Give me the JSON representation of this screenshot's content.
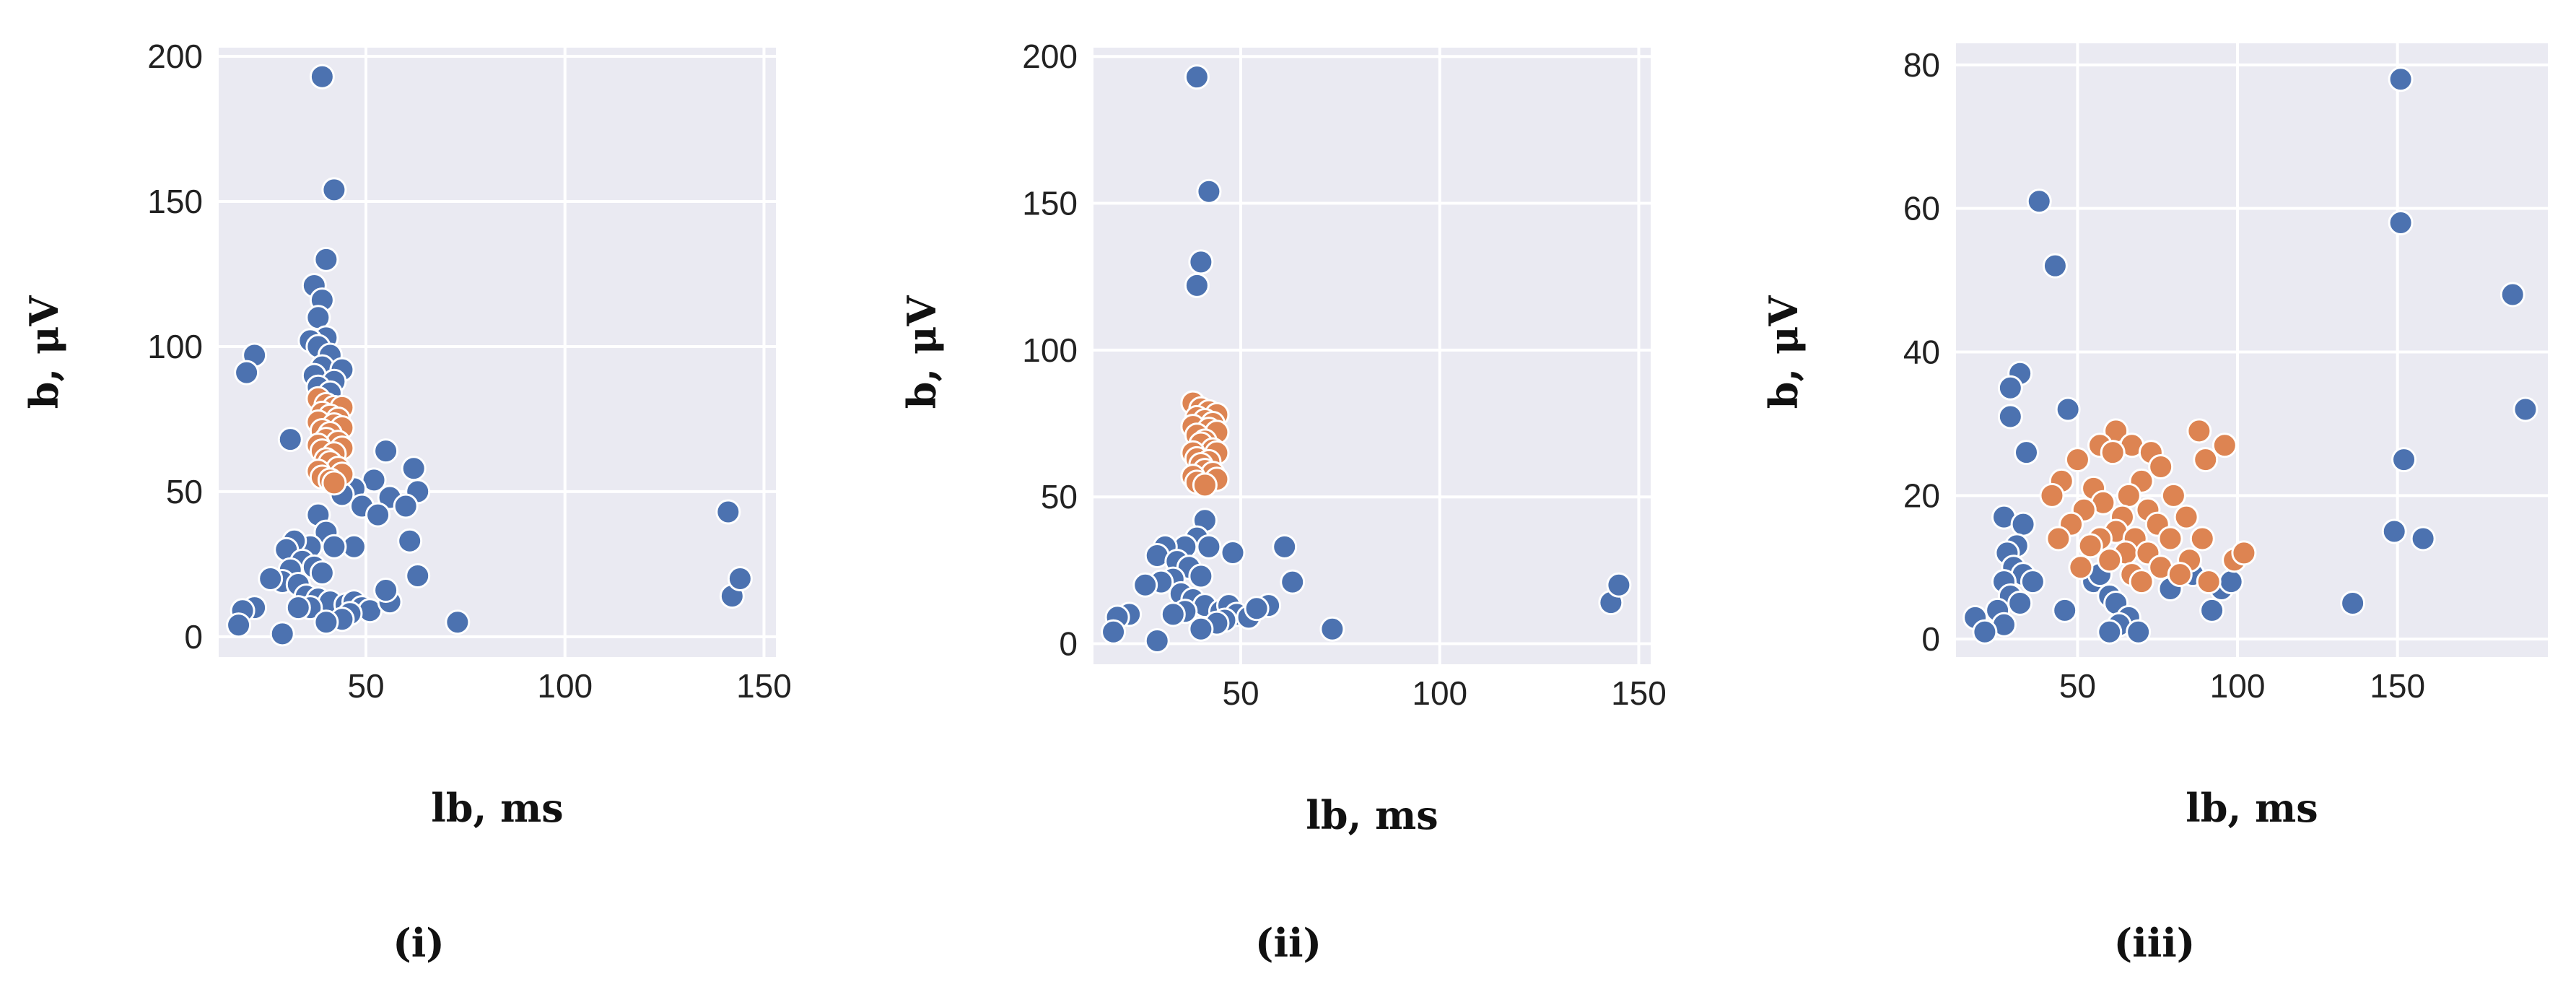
{
  "colors": {
    "background": "#eaeaf2",
    "grid": "#ffffff",
    "cluster_other": "#4c72b0",
    "cluster_highlight": "#dd8452",
    "marker_edge": "#ffffff"
  },
  "chart_data": [
    {
      "type": "scatter",
      "panel_label": "(i)",
      "xlabel": "lb, ms",
      "ylabel": "b, μV",
      "xlim": [
        13,
        153
      ],
      "ylim": [
        -7,
        203
      ],
      "xticks": [
        50,
        100,
        150
      ],
      "yticks": [
        0,
        50,
        100,
        150,
        200
      ],
      "grid": true,
      "series": [
        {
          "color": "#4c72b0",
          "points": [
            [
              39,
              193
            ],
            [
              42,
              154
            ],
            [
              40,
              130
            ],
            [
              37,
              121
            ],
            [
              39,
              116
            ],
            [
              38,
              110
            ],
            [
              40,
              103
            ],
            [
              36,
              102
            ],
            [
              38,
              100
            ],
            [
              41,
              97
            ],
            [
              39,
              93
            ],
            [
              44,
              92
            ],
            [
              37,
              90
            ],
            [
              42,
              88
            ],
            [
              38,
              86
            ],
            [
              41,
              84
            ],
            [
              22,
              97
            ],
            [
              20,
              91
            ],
            [
              31,
              68
            ],
            [
              55,
              64
            ],
            [
              62,
              58
            ],
            [
              52,
              54
            ],
            [
              63,
              50
            ],
            [
              47,
              51
            ],
            [
              56,
              48
            ],
            [
              60,
              45
            ],
            [
              44,
              49
            ],
            [
              49,
              45
            ],
            [
              53,
              42
            ],
            [
              61,
              33
            ],
            [
              47,
              31
            ],
            [
              63,
              21
            ],
            [
              38,
              42
            ],
            [
              40,
              36
            ],
            [
              36,
              31
            ],
            [
              42,
              31
            ],
            [
              32,
              33
            ],
            [
              30,
              30
            ],
            [
              34,
              26
            ],
            [
              37,
              24
            ],
            [
              39,
              22
            ],
            [
              31,
              23
            ],
            [
              29,
              19
            ],
            [
              26,
              20
            ],
            [
              33,
              18
            ],
            [
              35,
              14
            ],
            [
              38,
              13
            ],
            [
              41,
              12
            ],
            [
              36,
              10
            ],
            [
              33,
              10
            ],
            [
              45,
              11
            ],
            [
              47,
              12
            ],
            [
              49,
              10
            ],
            [
              51,
              9
            ],
            [
              56,
              12
            ],
            [
              46,
              8
            ],
            [
              44,
              6
            ],
            [
              40,
              5
            ],
            [
              29,
              1
            ],
            [
              22,
              10
            ],
            [
              19,
              9
            ],
            [
              18,
              4
            ],
            [
              55,
              16
            ],
            [
              73,
              5
            ],
            [
              141,
              43
            ],
            [
              142,
              14
            ],
            [
              144,
              20
            ]
          ]
        },
        {
          "color": "#dd8452",
          "points": [
            [
              38,
              82
            ],
            [
              40,
              80
            ],
            [
              42,
              79
            ],
            [
              44,
              79
            ],
            [
              39,
              77
            ],
            [
              41,
              76
            ],
            [
              43,
              75
            ],
            [
              38,
              74
            ],
            [
              42,
              73
            ],
            [
              44,
              72
            ],
            [
              39,
              71
            ],
            [
              41,
              70
            ],
            [
              40,
              68
            ],
            [
              43,
              67
            ],
            [
              38,
              66
            ],
            [
              44,
              65
            ],
            [
              39,
              64
            ],
            [
              42,
              63
            ],
            [
              40,
              61
            ],
            [
              41,
              60
            ],
            [
              43,
              58
            ],
            [
              38,
              57
            ],
            [
              44,
              56
            ],
            [
              39,
              55
            ],
            [
              41,
              54
            ],
            [
              42,
              53
            ]
          ]
        }
      ]
    },
    {
      "type": "scatter",
      "panel_label": "(ii)",
      "xlabel": "lb, ms",
      "ylabel": "b, μV",
      "xlim": [
        13,
        153
      ],
      "ylim": [
        -7,
        203
      ],
      "xticks": [
        50,
        100,
        150
      ],
      "yticks": [
        0,
        50,
        100,
        150,
        200
      ],
      "grid": true,
      "series": [
        {
          "color": "#4c72b0",
          "points": [
            [
              39,
              193
            ],
            [
              42,
              154
            ],
            [
              40,
              130
            ],
            [
              39,
              122
            ],
            [
              41,
              42
            ],
            [
              39,
              36
            ],
            [
              36,
              33
            ],
            [
              42,
              33
            ],
            [
              31,
              33
            ],
            [
              29,
              30
            ],
            [
              34,
              28
            ],
            [
              37,
              26
            ],
            [
              40,
              23
            ],
            [
              33,
              22
            ],
            [
              30,
              21
            ],
            [
              26,
              20
            ],
            [
              35,
              17
            ],
            [
              38,
              15
            ],
            [
              41,
              13
            ],
            [
              36,
              11
            ],
            [
              33,
              10
            ],
            [
              45,
              11
            ],
            [
              47,
              13
            ],
            [
              49,
              10
            ],
            [
              52,
              9
            ],
            [
              57,
              13
            ],
            [
              46,
              8
            ],
            [
              44,
              7
            ],
            [
              40,
              5
            ],
            [
              29,
              1
            ],
            [
              22,
              10
            ],
            [
              19,
              9
            ],
            [
              18,
              4
            ],
            [
              48,
              31
            ],
            [
              61,
              33
            ],
            [
              63,
              21
            ],
            [
              54,
              12
            ],
            [
              73,
              5
            ],
            [
              143,
              14
            ],
            [
              145,
              20
            ]
          ]
        },
        {
          "color": "#dd8452",
          "points": [
            [
              38,
              82
            ],
            [
              40,
              80
            ],
            [
              42,
              79
            ],
            [
              44,
              78
            ],
            [
              39,
              77
            ],
            [
              41,
              76
            ],
            [
              43,
              75
            ],
            [
              38,
              74
            ],
            [
              42,
              73
            ],
            [
              44,
              72
            ],
            [
              39,
              71
            ],
            [
              41,
              69
            ],
            [
              40,
              68
            ],
            [
              43,
              66
            ],
            [
              38,
              65
            ],
            [
              44,
              65
            ],
            [
              39,
              63
            ],
            [
              42,
              62
            ],
            [
              40,
              61
            ],
            [
              41,
              59
            ],
            [
              43,
              58
            ],
            [
              38,
              57
            ],
            [
              44,
              56
            ],
            [
              39,
              55
            ],
            [
              41,
              54
            ]
          ]
        }
      ]
    },
    {
      "type": "scatter",
      "panel_label": "(iii)",
      "xlabel": "lb, ms",
      "ylabel": "b, μV",
      "xlim": [
        12,
        197
      ],
      "ylim": [
        -2.5,
        83
      ],
      "xticks": [
        50,
        100,
        150
      ],
      "yticks": [
        0,
        20,
        40,
        60,
        80
      ],
      "grid": true,
      "series": [
        {
          "color": "#4c72b0",
          "points": [
            [
              38,
              61
            ],
            [
              43,
              52
            ],
            [
              32,
              37
            ],
            [
              29,
              35
            ],
            [
              47,
              32
            ],
            [
              29,
              31
            ],
            [
              34,
              26
            ],
            [
              27,
              17
            ],
            [
              33,
              16
            ],
            [
              31,
              13
            ],
            [
              28,
              12
            ],
            [
              30,
              10
            ],
            [
              33,
              9
            ],
            [
              36,
              8
            ],
            [
              27,
              8
            ],
            [
              29,
              6
            ],
            [
              32,
              5
            ],
            [
              25,
              4
            ],
            [
              27,
              2
            ],
            [
              18,
              3
            ],
            [
              21,
              1
            ],
            [
              46,
              4
            ],
            [
              55,
              8
            ],
            [
              57,
              9
            ],
            [
              60,
              6
            ],
            [
              62,
              5
            ],
            [
              66,
              3
            ],
            [
              63,
              2
            ],
            [
              60,
              1
            ],
            [
              69,
              1
            ],
            [
              79,
              7
            ],
            [
              86,
              9
            ],
            [
              92,
              4
            ],
            [
              95,
              7
            ],
            [
              98,
              8
            ],
            [
              136,
              5
            ],
            [
              151,
              78
            ],
            [
              151,
              58
            ],
            [
              152,
              25
            ],
            [
              149,
              15
            ],
            [
              158,
              14
            ],
            [
              186,
              48
            ],
            [
              190,
              32
            ]
          ]
        },
        {
          "color": "#dd8452",
          "points": [
            [
              62,
              29
            ],
            [
              67,
              27
            ],
            [
              73,
              26
            ],
            [
              88,
              29
            ],
            [
              57,
              27
            ],
            [
              61,
              26
            ],
            [
              76,
              24
            ],
            [
              90,
              25
            ],
            [
              96,
              27
            ],
            [
              50,
              25
            ],
            [
              45,
              22
            ],
            [
              70,
              22
            ],
            [
              55,
              21
            ],
            [
              66,
              20
            ],
            [
              80,
              20
            ],
            [
              42,
              20
            ],
            [
              58,
              19
            ],
            [
              72,
              18
            ],
            [
              84,
              17
            ],
            [
              52,
              18
            ],
            [
              64,
              17
            ],
            [
              48,
              16
            ],
            [
              75,
              16
            ],
            [
              89,
              14
            ],
            [
              62,
              15
            ],
            [
              57,
              14
            ],
            [
              68,
              14
            ],
            [
              79,
              14
            ],
            [
              44,
              14
            ],
            [
              54,
              13
            ],
            [
              65,
              12
            ],
            [
              72,
              12
            ],
            [
              85,
              11
            ],
            [
              99,
              11
            ],
            [
              102,
              12
            ],
            [
              60,
              11
            ],
            [
              76,
              10
            ],
            [
              51,
              10
            ],
            [
              67,
              9
            ],
            [
              70,
              8
            ],
            [
              91,
              8
            ],
            [
              82,
              9
            ]
          ]
        }
      ]
    }
  ]
}
